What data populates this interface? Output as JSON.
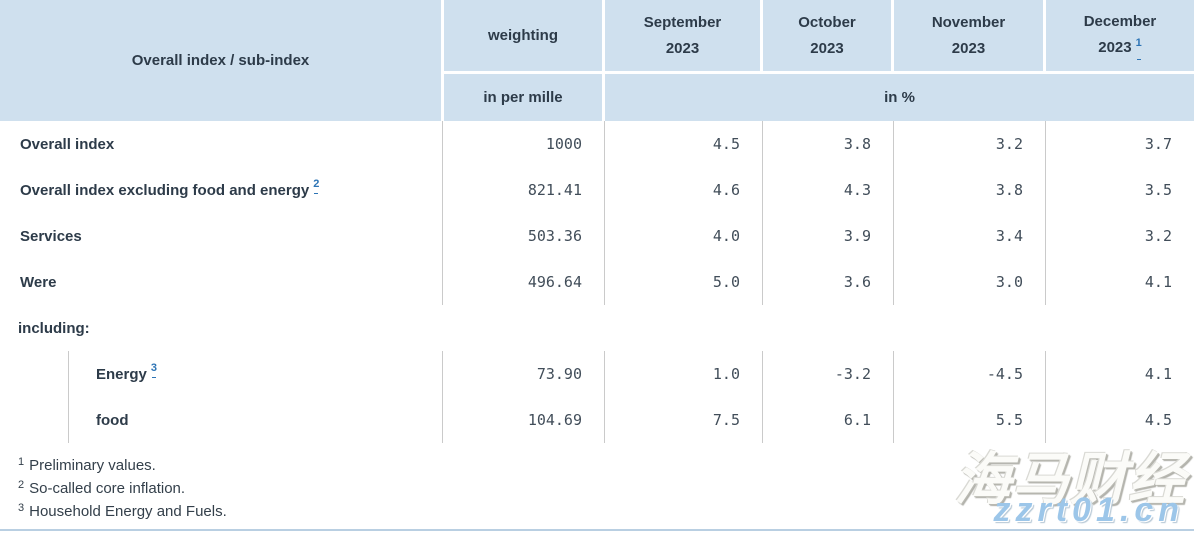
{
  "header": {
    "index_col": "Overall index / sub-index",
    "weighting": "weighting",
    "weighting_unit": "in per mille",
    "pct_unit": "in %",
    "months": [
      {
        "name": "September",
        "year": "2023",
        "footnote_ref": ""
      },
      {
        "name": "October",
        "year": "2023",
        "footnote_ref": ""
      },
      {
        "name": "November",
        "year": "2023",
        "footnote_ref": ""
      },
      {
        "name": "December",
        "year": "2023",
        "footnote_ref": "1"
      }
    ]
  },
  "rows": [
    {
      "label": "Overall index",
      "weighting": "1000",
      "values": [
        "4.5",
        "3.8",
        "3.2",
        "3.7"
      ]
    },
    {
      "label": "Overall index excluding food and energy",
      "sup": "2",
      "weighting": "821.41",
      "values": [
        "4.6",
        "4.3",
        "3.8",
        "3.5"
      ]
    },
    {
      "label": "Services",
      "weighting": "503.36",
      "values": [
        "4.0",
        "3.9",
        "3.4",
        "3.2"
      ]
    },
    {
      "label": "Were",
      "weighting": "496.64",
      "values": [
        "5.0",
        "3.6",
        "3.0",
        "4.1"
      ]
    },
    {
      "label": "including:"
    },
    {
      "label": "Energy",
      "sup": "3",
      "weighting": "73.90",
      "values": [
        "1.0",
        "-3.2",
        "-4.5",
        "4.1"
      ]
    },
    {
      "label": "food",
      "weighting": "104.69",
      "values": [
        "7.5",
        "6.1",
        "5.5",
        "4.5"
      ]
    }
  ],
  "footnotes": [
    {
      "ref": "1",
      "text": "Preliminary values."
    },
    {
      "ref": "2",
      "text": "So-called core inflation."
    },
    {
      "ref": "3",
      "text": "Household Energy and Fuels."
    }
  ],
  "watermark": {
    "brand": "海马财经",
    "domain": "zzrt01.cn"
  },
  "colors": {
    "header_bg": "#cfe0ee",
    "header_text": "#2d3b49",
    "number_text": "#414d59",
    "divider": "#cacaca",
    "link_blue": "#2d74b5",
    "bottom_rule": "#b9cfe2",
    "watermark_blue": "#9cc6e9"
  },
  "chart_data": {
    "type": "table",
    "title": "Overall index / sub-index",
    "columns": [
      "Overall index / sub-index",
      "weighting (in per mille)",
      "September 2023 (in %)",
      "October 2023 (in %)",
      "November 2023 (in %)",
      "December 2023 (in %)"
    ],
    "rows": [
      [
        "Overall index",
        1000,
        4.5,
        3.8,
        3.2,
        3.7
      ],
      [
        "Overall index excluding food and energy",
        821.41,
        4.6,
        4.3,
        3.8,
        3.5
      ],
      [
        "Services",
        503.36,
        4.0,
        3.9,
        3.4,
        3.2
      ],
      [
        "Were",
        496.64,
        5.0,
        3.6,
        3.0,
        4.1
      ],
      [
        "Energy",
        73.9,
        1.0,
        -3.2,
        -4.5,
        4.1
      ],
      [
        "food",
        104.69,
        7.5,
        6.1,
        5.5,
        4.5
      ]
    ],
    "footnotes": [
      "Preliminary values.",
      "So-called core inflation.",
      "Household Energy and Fuels."
    ]
  }
}
